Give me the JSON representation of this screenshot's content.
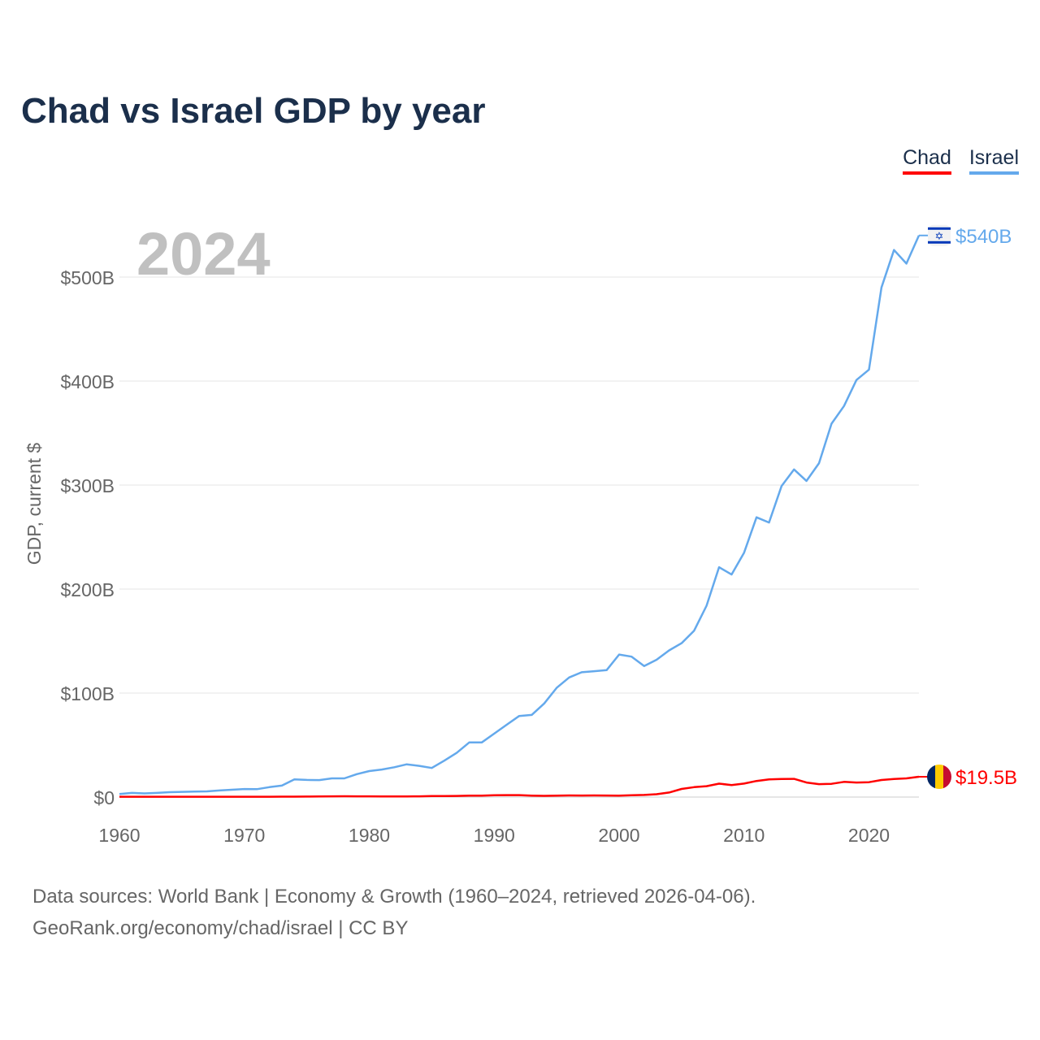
{
  "chart_data": {
    "type": "line",
    "title": "Chad vs Israel GDP by year",
    "ylabel": "GDP, current $",
    "xlabel": "",
    "year_label": "2024",
    "xlim": [
      1960,
      2024
    ],
    "ylim": [
      0,
      540
    ],
    "x_ticks": [
      1960,
      1970,
      1980,
      1990,
      2000,
      2010,
      2020
    ],
    "y_ticks": [
      0,
      100,
      200,
      300,
      400,
      500
    ],
    "y_tick_labels": [
      "$0",
      "$100B",
      "$200B",
      "$300B",
      "$400B",
      "$500B"
    ],
    "grid": true,
    "legend_position": "top-right",
    "units": "billions USD",
    "x": [
      1960,
      1961,
      1962,
      1963,
      1964,
      1965,
      1966,
      1967,
      1968,
      1969,
      1970,
      1971,
      1972,
      1973,
      1974,
      1975,
      1976,
      1977,
      1978,
      1979,
      1980,
      1981,
      1982,
      1983,
      1984,
      1985,
      1986,
      1987,
      1988,
      1989,
      1990,
      1991,
      1992,
      1993,
      1994,
      1995,
      1996,
      1997,
      1998,
      1999,
      2000,
      2001,
      2002,
      2003,
      2004,
      2005,
      2006,
      2007,
      2008,
      2009,
      2010,
      2011,
      2012,
      2013,
      2014,
      2015,
      2016,
      2017,
      2018,
      2019,
      2020,
      2021,
      2022,
      2023,
      2024
    ],
    "series": [
      {
        "name": "Chad",
        "color": "#ff0000",
        "end_label": "$19.5B",
        "flag": "chad-flag",
        "values": [
          0.3,
          0.3,
          0.3,
          0.3,
          0.3,
          0.3,
          0.3,
          0.3,
          0.3,
          0.3,
          0.3,
          0.3,
          0.3,
          0.4,
          0.4,
          0.5,
          0.6,
          0.7,
          0.8,
          0.7,
          0.7,
          0.6,
          0.6,
          0.6,
          0.7,
          1.0,
          1.0,
          1.1,
          1.4,
          1.3,
          1.7,
          1.9,
          1.9,
          1.4,
          1.2,
          1.4,
          1.6,
          1.5,
          1.6,
          1.5,
          1.4,
          1.7,
          2.0,
          2.7,
          4.4,
          7.8,
          9.5,
          10.5,
          12.9,
          11.6,
          13.0,
          15.5,
          17.0,
          17.4,
          17.5,
          14.0,
          12.4,
          12.7,
          14.6,
          14.0,
          14.3,
          16.4,
          17.4,
          18.0,
          19.5
        ]
      },
      {
        "name": "Israel",
        "color": "#64a9ec",
        "end_label": "$540B",
        "flag": "israel-flag",
        "values": [
          3,
          4,
          3.5,
          4,
          4.7,
          5,
          5.3,
          5.5,
          6.3,
          7,
          7.7,
          7.6,
          9.5,
          11,
          17,
          16.5,
          16.3,
          18,
          18,
          22,
          25,
          26.5,
          28.7,
          31.5,
          30,
          28,
          35,
          42.5,
          52.5,
          52.5,
          61,
          69.5,
          78,
          79,
          90,
          105,
          115,
          120,
          121,
          122,
          137,
          135,
          126,
          132,
          141,
          148,
          160,
          184,
          221,
          214,
          235,
          269,
          264,
          299,
          315,
          304,
          321,
          359,
          376,
          401,
          411,
          490,
          526,
          513,
          540
        ]
      }
    ]
  },
  "source": {
    "line1": "Data sources: World Bank | Economy & Growth (1960–2024, retrieved 2026-04-06).",
    "line2": "GeoRank.org/economy/chad/israel | CC BY"
  }
}
